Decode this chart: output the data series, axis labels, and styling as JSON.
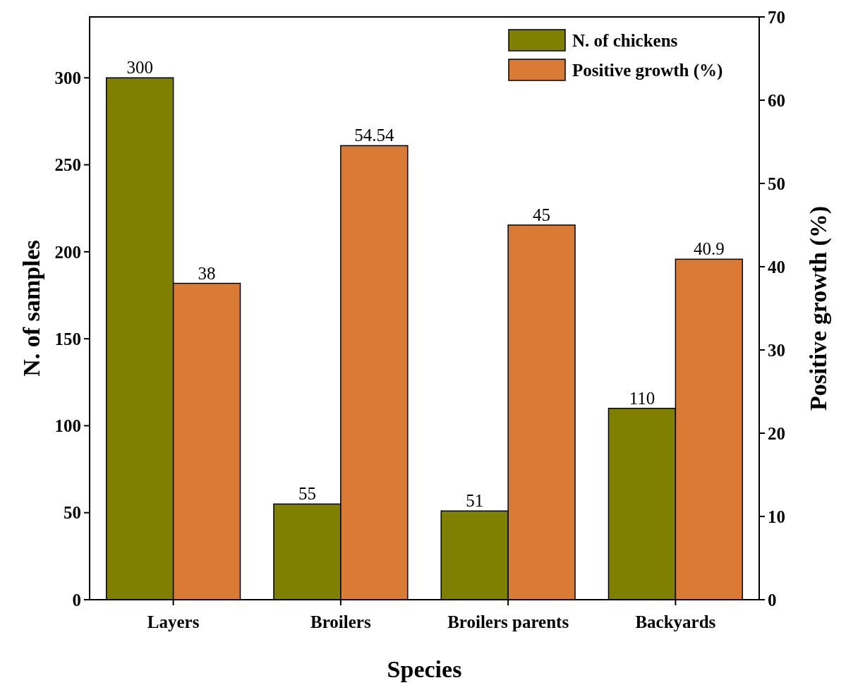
{
  "chart_data": {
    "type": "bar",
    "xlabel": "Species",
    "ylabel": "N. of samples",
    "y2label": "Positive growth (%)",
    "categories": [
      "Layers",
      "Broilers",
      "Broilers parents",
      "Backyards"
    ],
    "series": [
      {
        "name": "N. of chickens",
        "color": "#808000",
        "values": [
          300,
          55,
          51,
          110
        ]
      },
      {
        "name": "Positive growth (%)",
        "color": "#d97a35",
        "values": [
          38,
          54.54,
          45,
          40.9
        ],
        "axis": "y2"
      }
    ],
    "ylim": [
      0,
      335
    ],
    "yticks": [
      0,
      50,
      100,
      150,
      200,
      250,
      300
    ],
    "y2lim": [
      0,
      70
    ],
    "y2ticks": [
      0,
      10,
      20,
      30,
      40,
      50,
      60,
      70
    ],
    "data_labels": true,
    "legend": "top right",
    "grid": false
  }
}
